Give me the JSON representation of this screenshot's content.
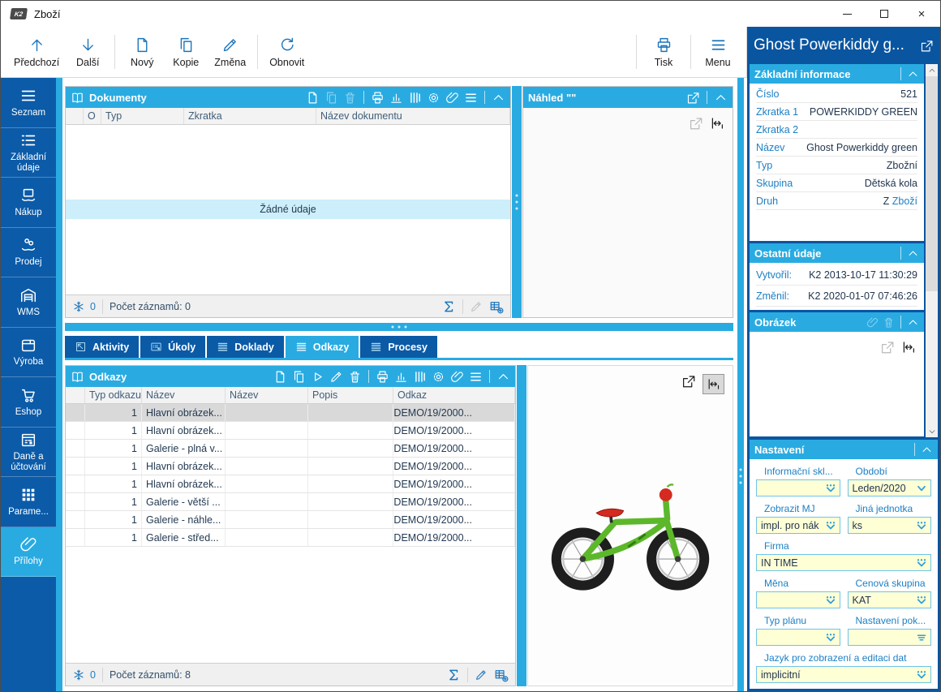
{
  "window": {
    "title": "Zboží"
  },
  "toolbar": {
    "buttons_left": [
      {
        "id": "previous",
        "label": "Předchozí",
        "icon": "arrow-up"
      },
      {
        "id": "next",
        "label": "Další",
        "icon": "arrow-down"
      },
      {
        "id": "new",
        "label": "Nový",
        "icon": "new-document",
        "group_start": true
      },
      {
        "id": "copy",
        "label": "Kopie",
        "icon": "copy"
      },
      {
        "id": "change",
        "label": "Změna",
        "icon": "pencil"
      },
      {
        "id": "refresh",
        "label": "Obnovit",
        "icon": "refresh",
        "group_start": true
      }
    ],
    "buttons_right": [
      {
        "id": "print",
        "label": "Tisk",
        "icon": "printer"
      },
      {
        "id": "menu",
        "label": "Menu",
        "icon": "menu"
      }
    ]
  },
  "sidebar": {
    "items": [
      {
        "id": "seznam",
        "label": "Seznam",
        "icon": "hamburger",
        "active": false
      },
      {
        "id": "zakladni-udaje",
        "label": "Základní údaje",
        "icon": "list",
        "active": false
      },
      {
        "id": "nakup",
        "label": "Nákup",
        "icon": "purchase",
        "active": false
      },
      {
        "id": "prodej",
        "label": "Prodej",
        "icon": "sale",
        "active": false
      },
      {
        "id": "wms",
        "label": "WMS",
        "icon": "warehouse",
        "active": false
      },
      {
        "id": "vyroba",
        "label": "Výroba",
        "icon": "production",
        "active": false
      },
      {
        "id": "eshop",
        "label": "Eshop",
        "icon": "cart",
        "active": false
      },
      {
        "id": "dane-a-uctovani",
        "label": "Daně a účtování",
        "icon": "calendar",
        "active": false
      },
      {
        "id": "parametry",
        "label": "Parame...",
        "icon": "grid",
        "active": false
      },
      {
        "id": "prilohy",
        "label": "Přílohy",
        "icon": "paperclip",
        "active": true
      }
    ]
  },
  "documents_panel": {
    "title": "Dokumenty",
    "columns": [
      "",
      "O",
      "Typ",
      "Zkratka",
      "Název dokumentu"
    ],
    "empty_text": "Žádné údaje",
    "frozen_count": "0",
    "records_text": "Počet záznamů: 0"
  },
  "preview_panel": {
    "title": "Náhled \"\""
  },
  "tabs": [
    {
      "id": "aktivity",
      "label": "Aktivity",
      "icon": "activity",
      "active": false
    },
    {
      "id": "ukoly",
      "label": "Úkoly",
      "icon": "tasks",
      "active": false
    },
    {
      "id": "doklady",
      "label": "Doklady",
      "icon": "bars",
      "active": false
    },
    {
      "id": "odkazy",
      "label": "Odkazy",
      "icon": "bars",
      "active": true
    },
    {
      "id": "procesy",
      "label": "Procesy",
      "icon": "bars",
      "active": false
    }
  ],
  "links_panel": {
    "title": "Odkazy",
    "columns": [
      "",
      "Typ odkazu",
      "Název",
      "Název",
      "Popis",
      "Odkaz"
    ],
    "rows": [
      {
        "type": "1",
        "name": "Hlavní obrázek...",
        "name2": "",
        "popis": "",
        "link": "DEMO/19/2000...",
        "selected": true
      },
      {
        "type": "1",
        "name": "Hlavní obrázek...",
        "name2": "",
        "popis": "",
        "link": "DEMO/19/2000...",
        "selected": false
      },
      {
        "type": "1",
        "name": "Galerie - plná v...",
        "name2": "",
        "popis": "",
        "link": "DEMO/19/2000...",
        "selected": false
      },
      {
        "type": "1",
        "name": "Hlavní obrázek...",
        "name2": "",
        "popis": "",
        "link": "DEMO/19/2000...",
        "selected": false
      },
      {
        "type": "1",
        "name": "Hlavní obrázek...",
        "name2": "",
        "popis": "",
        "link": "DEMO/19/2000...",
        "selected": false
      },
      {
        "type": "1",
        "name": "Galerie - větší ...",
        "name2": "",
        "popis": "",
        "link": "DEMO/19/2000...",
        "selected": false
      },
      {
        "type": "1",
        "name": "Galerie - náhle...",
        "name2": "",
        "popis": "",
        "link": "DEMO/19/2000...",
        "selected": false
      },
      {
        "type": "1",
        "name": "Galerie - střed...",
        "name2": "",
        "popis": "",
        "link": "DEMO/19/2000...",
        "selected": false
      }
    ],
    "frozen_count": "0",
    "records_text": "Počet záznamů: 8"
  },
  "detail_panel": {
    "title": "Ghost Powerkiddy g...",
    "basic_info": {
      "title": "Základní informace",
      "rows": [
        {
          "label": "Číslo",
          "value": "521"
        },
        {
          "label": "Zkratka 1",
          "value": "POWERKIDDY GREEN"
        },
        {
          "label": "Zkratka 2",
          "value": ""
        },
        {
          "label": "Název",
          "value": "Ghost Powerkiddy green"
        },
        {
          "label": "Typ",
          "value": "Zbožní"
        },
        {
          "label": "Skupina",
          "value": "Dětská kola"
        },
        {
          "label": "Druh",
          "value": "Z",
          "link": "Zboží"
        }
      ]
    },
    "other_info": {
      "title": "Ostatní údaje",
      "rows": [
        {
          "label": "Vytvořil:",
          "value": "K2 2013-10-17 11:30:29"
        },
        {
          "label": "Změnil:",
          "value": "K2 2020-01-07 07:46:26"
        }
      ]
    },
    "image_section": {
      "title": "Obrázek"
    },
    "settings": {
      "title": "Nastavení",
      "fields": [
        {
          "label": "Informační skl...",
          "value": "",
          "glyph": "k2-dropdown",
          "span": 1
        },
        {
          "label": "Období",
          "value": "Leden/2020",
          "glyph": "chevron",
          "span": 1
        },
        {
          "label": "Zobrazit MJ",
          "value": "impl. pro nák",
          "glyph": "k2-dropdown",
          "span": 1
        },
        {
          "label": "Jiná jednotka",
          "value": "ks",
          "glyph": "k2-dropdown",
          "span": 1
        },
        {
          "label": "Firma",
          "value": "IN TIME",
          "glyph": "k2-dropdown",
          "span": 2
        },
        {
          "label": "Měna",
          "value": "",
          "glyph": "k2-dropdown",
          "span": 1
        },
        {
          "label": "Cenová skupina",
          "value": "KAT",
          "glyph": "k2-dropdown",
          "span": 1
        },
        {
          "label": "Typ plánu",
          "value": "",
          "glyph": "k2-dropdown",
          "span": 1
        },
        {
          "label": "Nastavení pok...",
          "value": "",
          "glyph": "double-chevron",
          "span": 1
        },
        {
          "label": "Jazyk pro zobrazení a editaci dat",
          "value": "implicitní",
          "glyph": "k2-dropdown",
          "span": 2
        }
      ]
    }
  },
  "colors": {
    "accent_cyan": "#29abe2",
    "dark_blue": "#0b5aa6",
    "field_yellow": "#ffffd6",
    "selected_row": "#d9d9d9",
    "empty_row_highlight": "#cdeefb",
    "label_blue": "#1b7fc4",
    "value_navy": "#22364f",
    "bike_green": "#5cb82a",
    "bike_red": "#d42a20"
  }
}
